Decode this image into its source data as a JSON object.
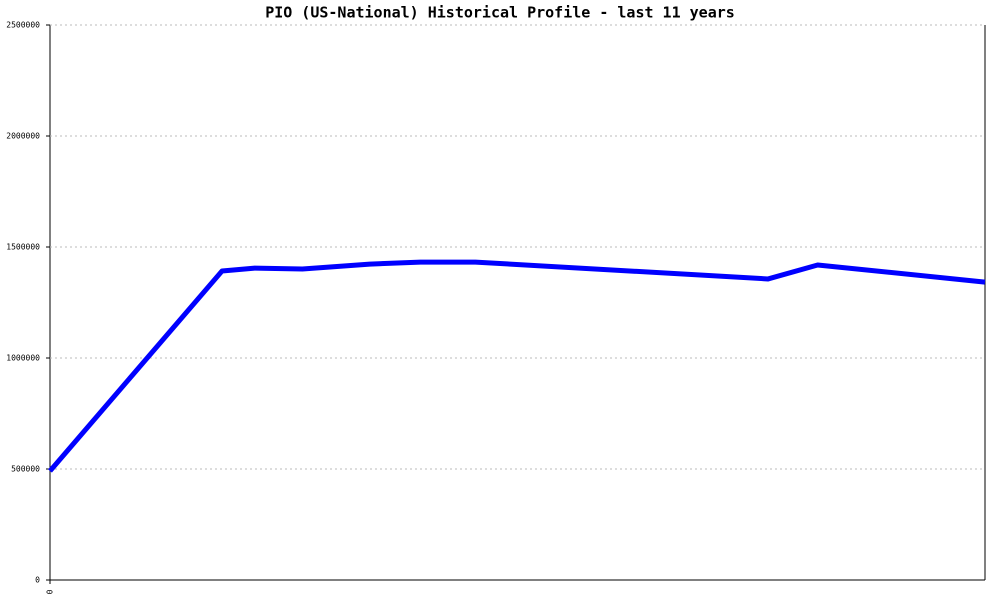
{
  "chart_data": {
    "type": "line",
    "title": "PIO (US-National) Historical Profile - last 11 years",
    "x": [
      0,
      18.4,
      21.9,
      27.0,
      34.2,
      39.6,
      45.5,
      76.8,
      82.1,
      100
    ],
    "series": [
      {
        "color": "#0000ff",
        "values": [
          491000,
          1392000,
          1405000,
          1401000,
          1423000,
          1432000,
          1432000,
          1356000,
          1419000,
          1342000
        ]
      }
    ],
    "xlim": [
      0,
      100
    ],
    "xticks": [
      0
    ],
    "ylim": [
      0,
      2500000
    ],
    "yticks": [
      0,
      500000,
      1000000,
      1500000,
      2000000,
      2500000
    ],
    "grid": true
  }
}
